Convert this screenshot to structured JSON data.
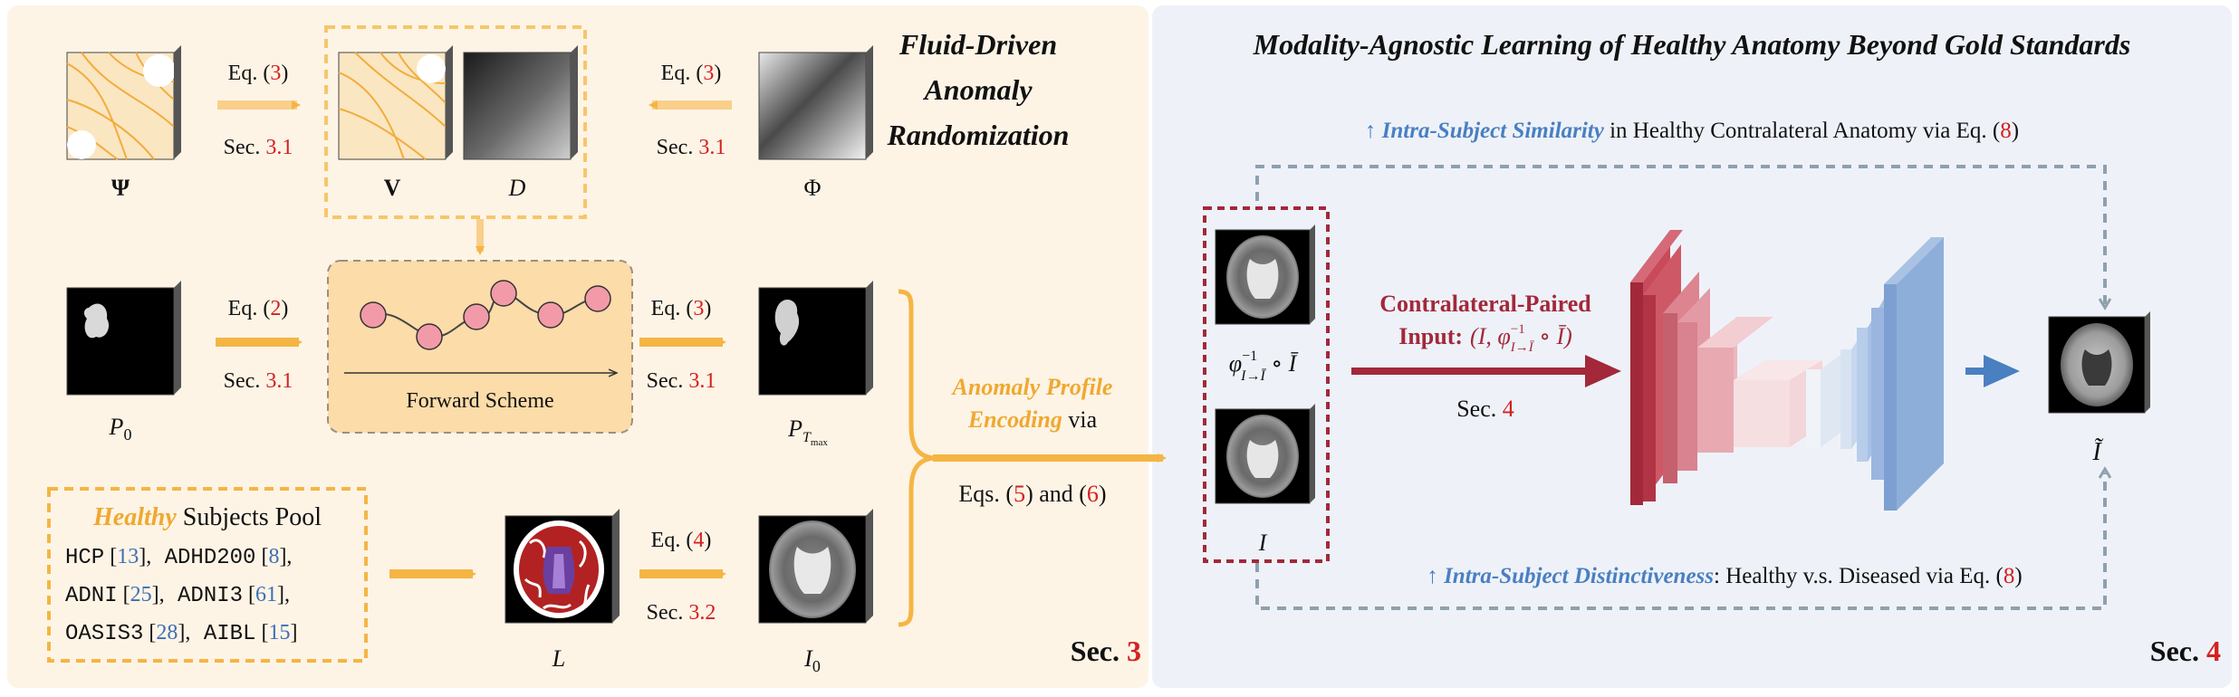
{
  "colors": {
    "left_panel_bg": "#fdf4e6",
    "right_panel_bg": "#eef2f8",
    "orange": "#f5b544",
    "orange_text": "#f0a830",
    "red_ref": "#d42020",
    "blue_ref": "#3b6fb6",
    "dark_red": "#a3283a",
    "blue_title": "#4a7fc1",
    "gray_dash": "#8fa0ae",
    "node_pink": "#f39aa8"
  },
  "left": {
    "title_line1": "Fluid-Driven",
    "title_line2": "Anomaly",
    "title_line3": "Randomization",
    "psi_label": "Ψ",
    "v_label": "V",
    "d_label": "D",
    "phi_label": "Φ",
    "p0_label": "P",
    "p0_sub": "0",
    "pt_label": "P",
    "pt_sub": "T",
    "pt_subsub": "max",
    "l_label": "L",
    "i0_label": "I",
    "i0_sub": "0",
    "eq_psi_text": "Eq. (",
    "eq_psi_num": "3",
    "eq_close": ")",
    "sec_psi_text": "Sec. ",
    "sec_psi_num": "3.1",
    "eq_phi_num": "3",
    "sec_phi_num": "3.1",
    "eq_p0_num": "2",
    "sec_p0_num": "3.1",
    "eq_pt_num": "3",
    "sec_pt_num": "3.1",
    "eq_l_num": "4",
    "sec_l_num": "3.2",
    "forward_scheme": "Forward Scheme",
    "pool_title_healthy": "Healthy",
    "pool_title_rest": " Subjects Pool",
    "pool_rows": [
      [
        {
          "name": "HCP",
          "ref": "13"
        },
        {
          "name": "ADHD200",
          "ref": "8"
        }
      ],
      [
        {
          "name": "ADNI",
          "ref": "25"
        },
        {
          "name": "ADNI3",
          "ref": "61"
        }
      ],
      [
        {
          "name": "OASIS3",
          "ref": "28"
        },
        {
          "name": "AIBL",
          "ref": "15"
        }
      ]
    ],
    "encoding_line1": "Anomaly Profile",
    "encoding_line2_italic": "Encoding",
    "encoding_line2_rest": " via",
    "eqs_text_a": "Eqs. (",
    "eqs_num_a": "5",
    "eqs_text_b": ") and (",
    "eqs_num_b": "6",
    "eqs_text_c": ")",
    "sec3_text": "Sec. ",
    "sec3_num": "3"
  },
  "right": {
    "title": "Modality-Agnostic Learning of Healthy Anatomy Beyond Gold Standards",
    "similarity_arrow": "↑ ",
    "similarity_bold": "Intra-Subject Similarity",
    "similarity_rest": " in Healthy Contralateral Anatomy via Eq. (",
    "similarity_num": "8",
    "distinct_arrow": "↑ ",
    "distinct_bold": "Intra-Subject Distinctiveness",
    "distinct_rest": ": Healthy v.s. Diseased via Eq. (",
    "distinct_num": "8",
    "paired_line1": "Contralateral-Paired",
    "paired_line2": "Input:",
    "paired_formula": "(I, φ",
    "paired_formula_sub": "I→Ī",
    "paired_formula_sup": "−1",
    "paired_formula_end": " ∘ Ī)",
    "sec4_small_text": "Sec. ",
    "sec4_small_num": "4",
    "phi_label": "φ",
    "phi_sup": "−1",
    "phi_sub": "I→Ī",
    "phi_end": " ∘ Ī",
    "i_label": "I",
    "itilde_label": "Ĩ",
    "sec4_text": "Sec. ",
    "sec4_num": "4"
  }
}
